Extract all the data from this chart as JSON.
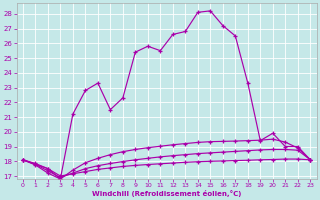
{
  "xlabel": "Windchill (Refroidissement éolien,°C)",
  "background_color": "#c5e8e8",
  "line_color": "#aa00aa",
  "grid_color": "#ffffff",
  "ylim": [
    16.8,
    28.7
  ],
  "yticks": [
    17,
    18,
    19,
    20,
    21,
    22,
    23,
    24,
    25,
    26,
    27,
    28
  ],
  "xlim": [
    -0.5,
    23.5
  ],
  "xticks": [
    0,
    1,
    2,
    3,
    4,
    5,
    6,
    7,
    8,
    9,
    10,
    11,
    12,
    13,
    14,
    15,
    16,
    17,
    18,
    19,
    20,
    21,
    22,
    23
  ],
  "line1_y": [
    18.1,
    17.85,
    17.5,
    17.0,
    17.15,
    17.3,
    17.45,
    17.55,
    17.65,
    17.72,
    17.78,
    17.83,
    17.88,
    17.93,
    17.97,
    18.0,
    18.02,
    18.05,
    18.07,
    18.1,
    18.12,
    18.15,
    18.15,
    18.1
  ],
  "line2_y": [
    18.1,
    17.8,
    17.35,
    16.9,
    17.2,
    17.5,
    17.7,
    17.85,
    17.98,
    18.1,
    18.2,
    18.3,
    18.38,
    18.45,
    18.52,
    18.57,
    18.62,
    18.67,
    18.72,
    18.77,
    18.8,
    18.8,
    18.75,
    18.1
  ],
  "line3_y": [
    18.1,
    17.75,
    17.2,
    16.8,
    17.4,
    17.9,
    18.2,
    18.45,
    18.65,
    18.8,
    18.92,
    19.02,
    19.12,
    19.2,
    19.28,
    19.33,
    19.35,
    19.37,
    19.4,
    19.43,
    19.5,
    19.3,
    18.9,
    18.1
  ],
  "line4_y": [
    18.1,
    17.8,
    17.5,
    16.8,
    21.2,
    22.8,
    23.3,
    21.5,
    22.3,
    25.4,
    25.8,
    25.5,
    26.6,
    26.8,
    28.1,
    28.2,
    27.2,
    26.5,
    23.3,
    19.4,
    19.9,
    19.0,
    19.0,
    18.1
  ],
  "x": [
    0,
    1,
    2,
    3,
    4,
    5,
    6,
    7,
    8,
    9,
    10,
    11,
    12,
    13,
    14,
    15,
    16,
    17,
    18,
    19,
    20,
    21,
    22,
    23
  ]
}
